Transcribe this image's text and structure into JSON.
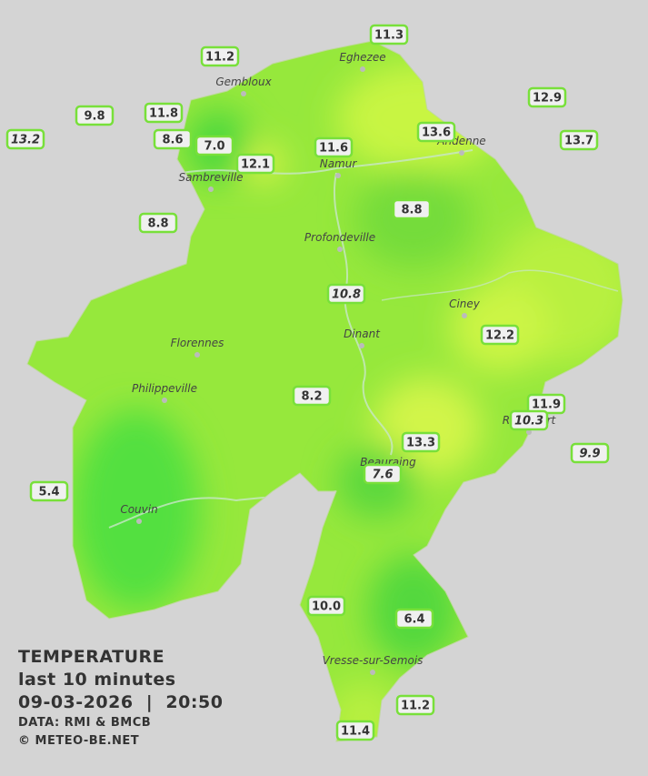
{
  "legend": {
    "title": "TEMPERATURE",
    "period": "last 10 minutes",
    "timestamp": "09-03-2026  |  20:50",
    "source": "DATA: RMI & BMCB",
    "copyright": "© METEO-BE.NET"
  },
  "cities": [
    "Eghezee",
    "Gembloux",
    "Andenne",
    "Namur",
    "Sambreville",
    "Profondeville",
    "Ciney",
    "Dinant",
    "Florennes",
    "Philippeville",
    "Rochefort",
    "Beauraing",
    "Couvin",
    "Vresse-sur-Semois"
  ],
  "stations": [
    {
      "value": "11.3"
    },
    {
      "value": "11.2"
    },
    {
      "value": "12.9"
    },
    {
      "value": "9.8"
    },
    {
      "value": "11.8"
    },
    {
      "value": "13.2",
      "italic": true
    },
    {
      "value": "8.6"
    },
    {
      "value": "7.0"
    },
    {
      "value": "11.6"
    },
    {
      "value": "13.6"
    },
    {
      "value": "13.7"
    },
    {
      "value": "12.1"
    },
    {
      "value": "8.8"
    },
    {
      "value": "8.8"
    },
    {
      "value": "10.8",
      "italic": true
    },
    {
      "value": "12.2"
    },
    {
      "value": "8.2"
    },
    {
      "value": "11.9"
    },
    {
      "value": "10.3",
      "italic": true
    },
    {
      "value": "13.3"
    },
    {
      "value": "9.9",
      "italic": true
    },
    {
      "value": "5.4"
    },
    {
      "value": "7.6",
      "italic": true
    },
    {
      "value": "10.0"
    },
    {
      "value": "6.4"
    },
    {
      "value": "11.2"
    },
    {
      "value": "11.4"
    }
  ]
}
